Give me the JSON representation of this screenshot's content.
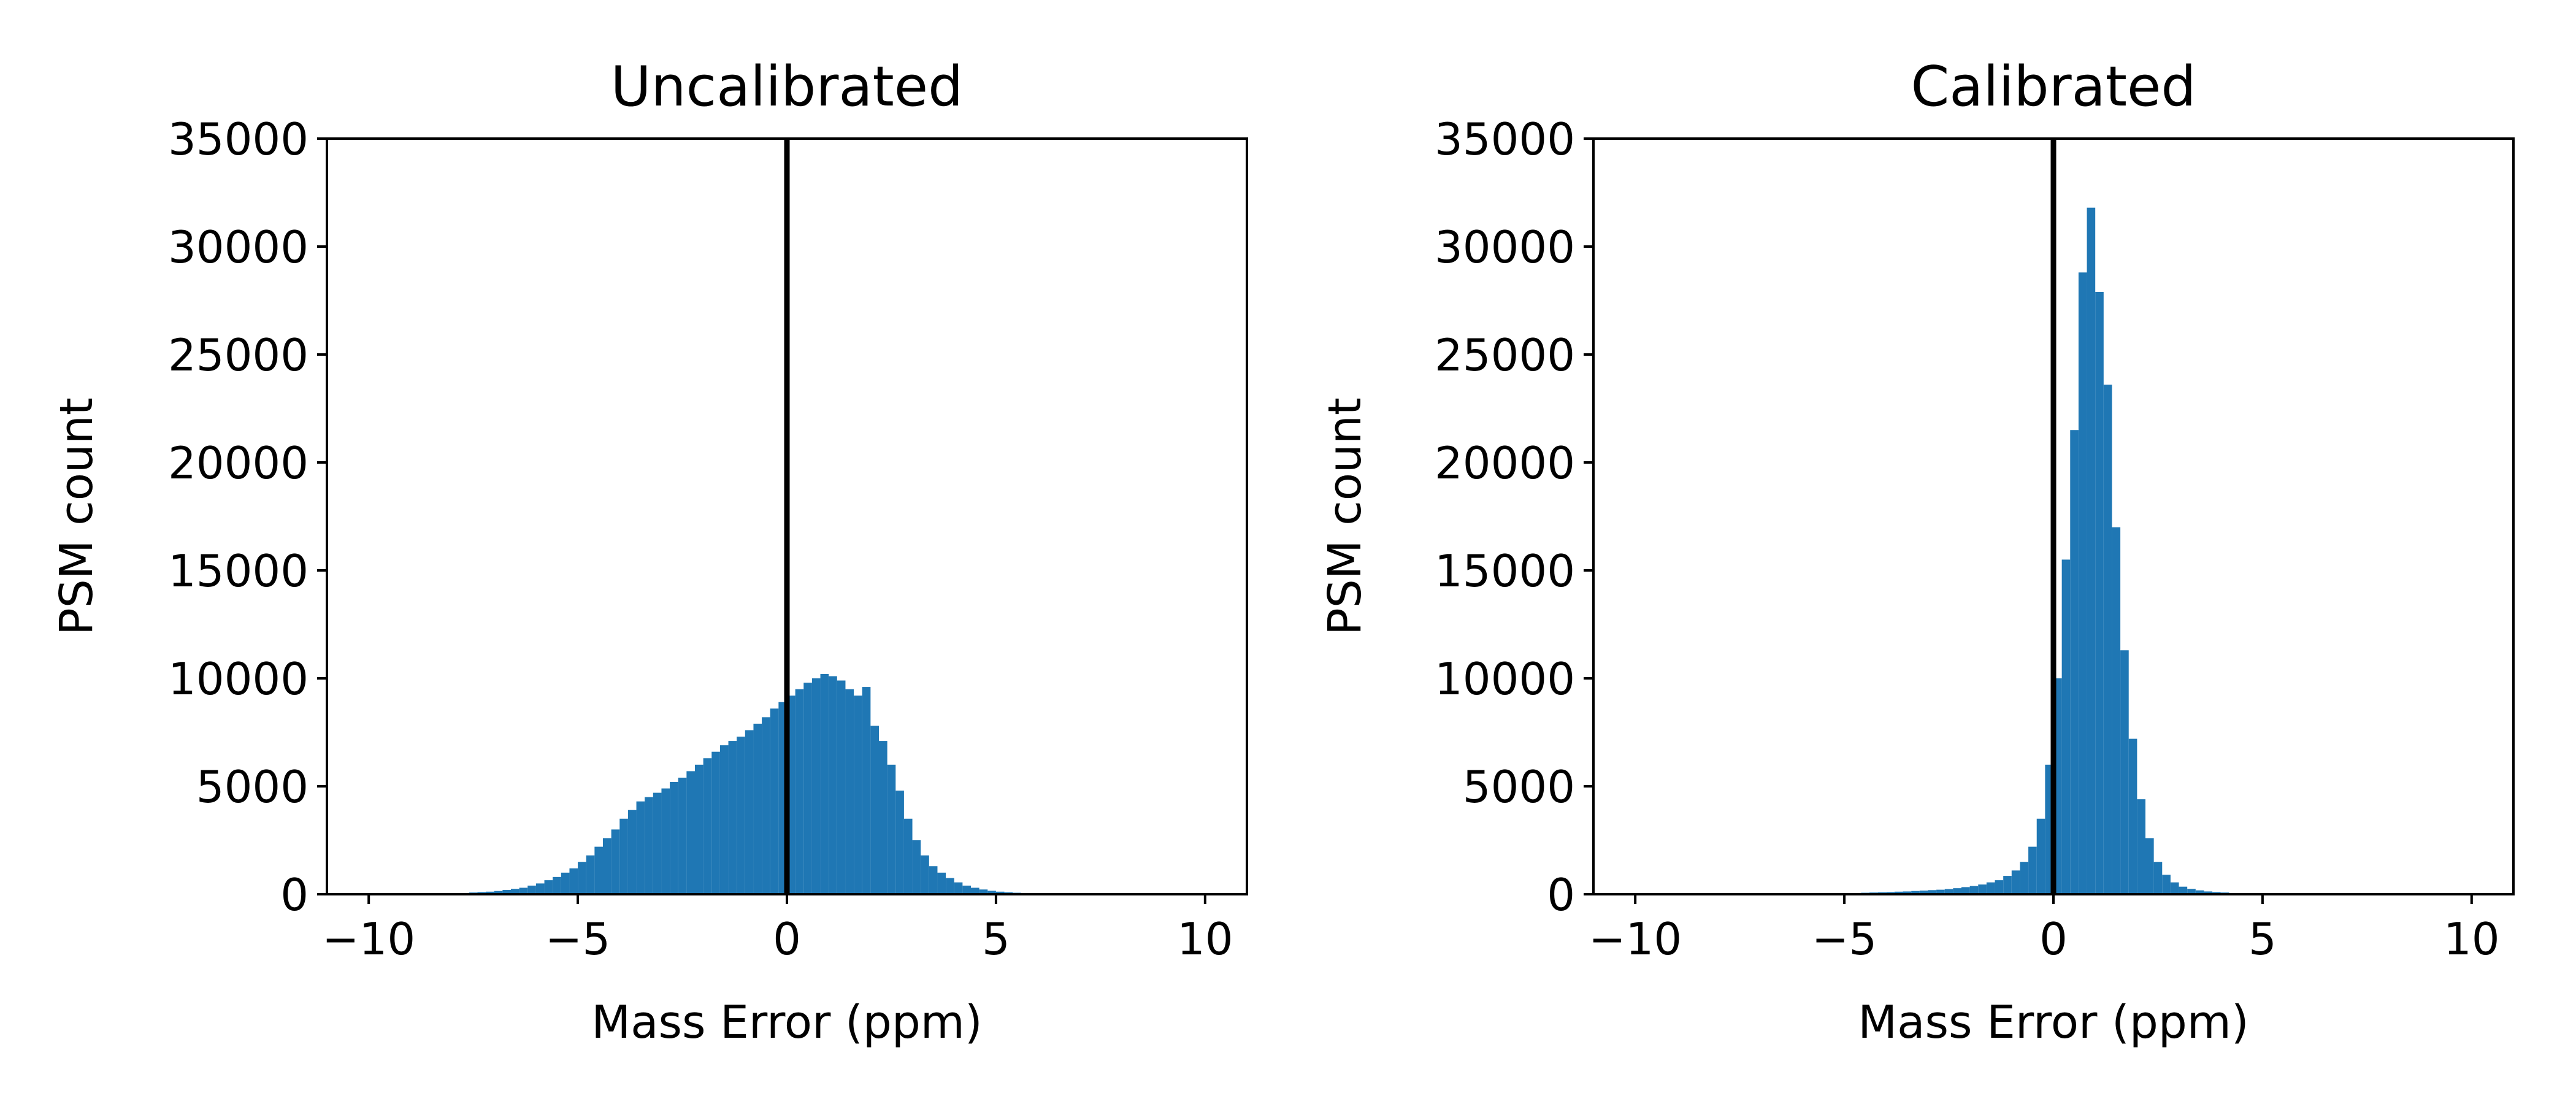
{
  "chart_data": [
    {
      "type": "bar",
      "title": "Uncalibrated",
      "xlabel": "Mass Error (ppm)",
      "ylabel": "PSM count",
      "xlim": [
        -11,
        11
      ],
      "ylim": [
        0,
        35000
      ],
      "xticks": [
        -10,
        -5,
        0,
        5,
        10
      ],
      "xtick_labels": [
        "−10",
        "−5",
        "0",
        "5",
        "10"
      ],
      "yticks": [
        0,
        5000,
        10000,
        15000,
        20000,
        25000,
        30000,
        35000
      ],
      "ytick_labels": [
        "0",
        "5000",
        "10000",
        "15000",
        "20000",
        "25000",
        "30000",
        "35000"
      ],
      "grid": false,
      "bar_color": "#1f77b4",
      "reference_line": {
        "x": 0,
        "color": "#000000"
      },
      "bin_edges_range": [
        -10,
        10
      ],
      "bin_width": 0.2,
      "values": [
        0,
        0,
        0,
        0,
        0,
        0,
        0,
        0,
        0,
        0,
        50,
        60,
        80,
        100,
        120,
        150,
        200,
        250,
        300,
        400,
        500,
        650,
        800,
        1000,
        1200,
        1500,
        1800,
        2200,
        2600,
        3000,
        3500,
        3900,
        4300,
        4500,
        4700,
        4900,
        5200,
        5400,
        5700,
        6000,
        6300,
        6600,
        6900,
        7100,
        7300,
        7600,
        7900,
        8200,
        8600,
        8900,
        9200,
        9500,
        9800,
        10000,
        10200,
        10100,
        9900,
        9500,
        9200,
        9600,
        7800,
        7100,
        6000,
        4800,
        3500,
        2500,
        1800,
        1300,
        1000,
        750,
        550,
        400,
        300,
        220,
        160,
        120,
        90,
        70,
        50,
        40,
        30,
        25,
        20,
        15,
        10,
        10,
        8,
        6,
        5,
        4,
        3,
        2,
        2,
        1,
        1,
        1,
        0,
        0,
        0,
        0
      ]
    },
    {
      "type": "bar",
      "title": "Calibrated",
      "xlabel": "Mass Error (ppm)",
      "ylabel": "PSM count",
      "xlim": [
        -11,
        11
      ],
      "ylim": [
        0,
        35000
      ],
      "xticks": [
        -10,
        -5,
        0,
        5,
        10
      ],
      "xtick_labels": [
        "−10",
        "−5",
        "0",
        "5",
        "10"
      ],
      "yticks": [
        0,
        5000,
        10000,
        15000,
        20000,
        25000,
        30000,
        35000
      ],
      "ytick_labels": [
        "0",
        "5000",
        "10000",
        "15000",
        "20000",
        "25000",
        "30000",
        "35000"
      ],
      "grid": false,
      "bar_color": "#1f77b4",
      "reference_line": {
        "x": 0,
        "color": "#000000"
      },
      "bin_edges_range": [
        -10,
        10
      ],
      "bin_width": 0.2,
      "values": [
        0,
        0,
        0,
        0,
        0,
        0,
        0,
        0,
        0,
        0,
        5,
        5,
        5,
        10,
        10,
        10,
        15,
        20,
        20,
        25,
        30,
        30,
        40,
        40,
        50,
        50,
        60,
        70,
        80,
        90,
        100,
        120,
        130,
        150,
        170,
        190,
        210,
        240,
        280,
        330,
        380,
        450,
        550,
        650,
        850,
        1100,
        1500,
        2200,
        3500,
        6000,
        10000,
        15500,
        21500,
        28800,
        31800,
        27900,
        23600,
        17000,
        11300,
        7200,
        4400,
        2600,
        1500,
        900,
        550,
        350,
        250,
        180,
        130,
        100,
        80,
        60,
        45,
        35,
        25,
        20,
        15,
        12,
        10,
        8,
        6,
        5,
        4,
        3,
        2,
        2,
        1,
        1,
        1,
        0,
        0,
        0,
        0,
        0,
        0,
        0,
        0,
        0,
        0,
        0
      ]
    }
  ]
}
